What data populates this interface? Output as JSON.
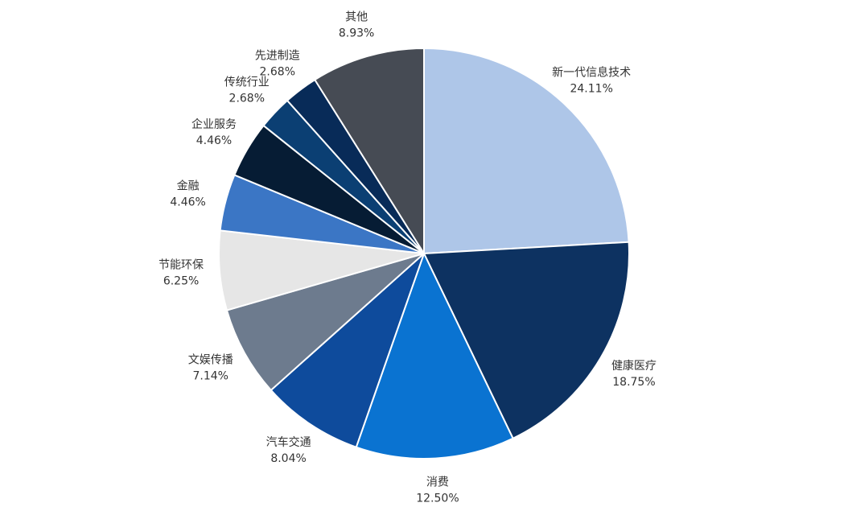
{
  "chart_data": {
    "type": "pie",
    "categories": [
      "新一代信息技术",
      "健康医疗",
      "消费",
      "汽车交通",
      "文娱传播",
      "节能环保",
      "金融",
      "企业服务",
      "传统行业",
      "先进制造",
      "其他"
    ],
    "values": [
      24.11,
      18.75,
      12.5,
      8.04,
      7.14,
      6.25,
      4.46,
      4.46,
      2.68,
      2.68,
      8.93
    ],
    "value_labels": [
      "24.11%",
      "18.75%",
      "12.50%",
      "8.04%",
      "7.14%",
      "6.25%",
      "4.46%",
      "4.46%",
      "2.68%",
      "2.68%",
      "8.93%"
    ],
    "colors": [
      "#aec6e8",
      "#0d3261",
      "#0a73d1",
      "#0e4b9c",
      "#6d7b8e",
      "#e6e6e6",
      "#3b76c5",
      "#061c34",
      "#0b3f73",
      "#082b58",
      "#464b54"
    ]
  }
}
